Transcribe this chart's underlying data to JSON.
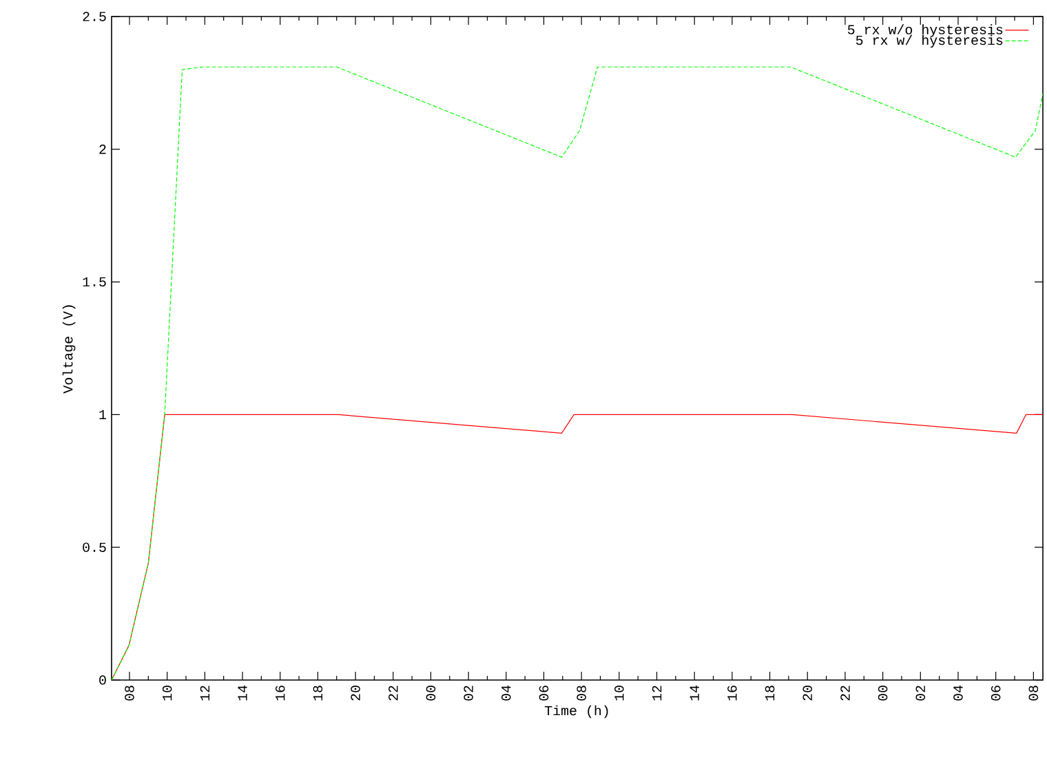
{
  "chart_data": {
    "type": "line",
    "xlabel": "Time (h)",
    "ylabel": "Voltage (V)",
    "xlim": [
      7.05,
      56.5
    ],
    "ylim": [
      0,
      2.5
    ],
    "xticks": [
      {
        "value": 8,
        "label": "08"
      },
      {
        "value": 10,
        "label": "10"
      },
      {
        "value": 12,
        "label": "12"
      },
      {
        "value": 14,
        "label": "14"
      },
      {
        "value": 16,
        "label": "16"
      },
      {
        "value": 18,
        "label": "18"
      },
      {
        "value": 20,
        "label": "20"
      },
      {
        "value": 22,
        "label": "22"
      },
      {
        "value": 24,
        "label": "00"
      },
      {
        "value": 26,
        "label": "02"
      },
      {
        "value": 28,
        "label": "04"
      },
      {
        "value": 30,
        "label": "06"
      },
      {
        "value": 32,
        "label": "08"
      },
      {
        "value": 34,
        "label": "10"
      },
      {
        "value": 36,
        "label": "12"
      },
      {
        "value": 38,
        "label": "14"
      },
      {
        "value": 40,
        "label": "16"
      },
      {
        "value": 42,
        "label": "18"
      },
      {
        "value": 44,
        "label": "20"
      },
      {
        "value": 46,
        "label": "22"
      },
      {
        "value": 48,
        "label": "00"
      },
      {
        "value": 50,
        "label": "02"
      },
      {
        "value": 52,
        "label": "04"
      },
      {
        "value": 54,
        "label": "06"
      },
      {
        "value": 56,
        "label": "08"
      }
    ],
    "yticks": [
      0,
      0.5,
      1,
      1.5,
      2,
      2.5
    ],
    "legend": "top right",
    "grid": false,
    "marker": "none",
    "series": [
      {
        "name": "5 rx w/o hysteresis",
        "color": "#ff0000",
        "line_style": "solid",
        "x": [
          7.05,
          7.97,
          9.0,
          9.87,
          19.1,
          30.95,
          31.6,
          43.2,
          55.1,
          55.6,
          56.5
        ],
        "values": [
          0,
          0.13,
          0.44,
          1.0,
          1.0,
          0.93,
          1.0,
          1.0,
          0.93,
          1.0,
          1.0
        ]
      },
      {
        "name": "5 rx w/ hysteresis",
        "color": "#00ff00",
        "line_style": "dashed",
        "x": [
          7.05,
          7.97,
          9.0,
          9.87,
          10.8,
          11.9,
          19.0,
          30.95,
          31.9,
          32.85,
          43.1,
          55.05,
          56.1,
          56.5
        ],
        "values": [
          0,
          0.13,
          0.44,
          1.0,
          2.3,
          2.31,
          2.31,
          1.97,
          2.07,
          2.31,
          2.31,
          1.97,
          2.07,
          2.21
        ]
      }
    ]
  }
}
